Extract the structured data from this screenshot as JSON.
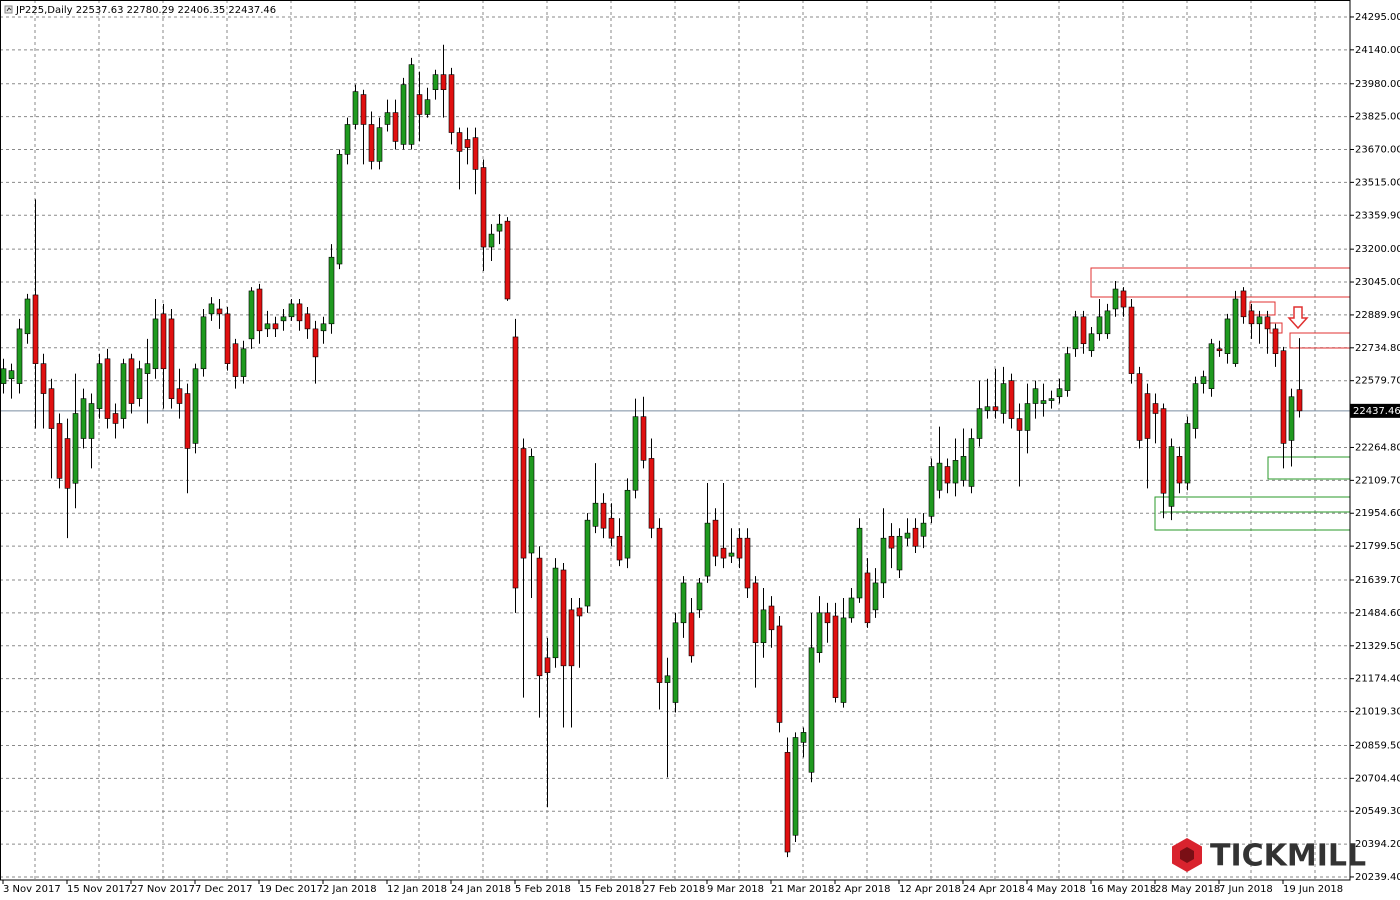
{
  "chart_data": {
    "type": "candlestick",
    "title": "JP225,Daily  22537.63 22780.29 22406.35 22437.46",
    "current_price": 22437.46,
    "up_color": "#1f9a1f",
    "down_color": "#e01010",
    "grid": true,
    "ylim": [
      20225,
      24375
    ],
    "yticks": [
      {
        "value": 24295,
        "label": "24295.00"
      },
      {
        "value": 24140,
        "label": "24140.00"
      },
      {
        "value": 23980,
        "label": "23980.00"
      },
      {
        "value": 23825,
        "label": "23825.00"
      },
      {
        "value": 23670,
        "label": "23670.00"
      },
      {
        "value": 23515,
        "label": "23515.00"
      },
      {
        "value": 23359.9,
        "label": "23359.90"
      },
      {
        "value": 23200,
        "label": "23200.00"
      },
      {
        "value": 23045,
        "label": "23045.00"
      },
      {
        "value": 22889.9,
        "label": "22889.90"
      },
      {
        "value": 22734.8,
        "label": "22734.80"
      },
      {
        "value": 22579.7,
        "label": "22579.70"
      },
      {
        "value": 22264.8,
        "label": "22264.80"
      },
      {
        "value": 22109.7,
        "label": "22109.70"
      },
      {
        "value": 21954.6,
        "label": "21954.60"
      },
      {
        "value": 21799.5,
        "label": "21799.50"
      },
      {
        "value": 21639.7,
        "label": "21639.70"
      },
      {
        "value": 21484.6,
        "label": "21484.60"
      },
      {
        "value": 21329.5,
        "label": "21329.50"
      },
      {
        "value": 21174.4,
        "label": "21174.40"
      },
      {
        "value": 21019.3,
        "label": "21019.30"
      },
      {
        "value": 20859.5,
        "label": "20859.50"
      },
      {
        "value": 20704.4,
        "label": "20704.40"
      },
      {
        "value": 20549.3,
        "label": "20549.30"
      },
      {
        "value": 20394.2,
        "label": "20394.20"
      },
      {
        "value": 20239.4,
        "label": "20239.40"
      }
    ],
    "categories": [
      "3 Nov 2017",
      null,
      null,
      null,
      null,
      null,
      null,
      null,
      "15 Nov 2017",
      null,
      null,
      null,
      null,
      null,
      null,
      null,
      "27 Nov 2017",
      null,
      null,
      null,
      null,
      null,
      null,
      null,
      "7 Dec 2017",
      null,
      null,
      null,
      null,
      null,
      null,
      null,
      "19 Dec 2017",
      null,
      null,
      null,
      null,
      null,
      null,
      null,
      "2 Jan 2018",
      null,
      null,
      null,
      null,
      null,
      null,
      null,
      "12 Jan 2018",
      null,
      null,
      null,
      null,
      null,
      null,
      null,
      "24 Jan 2018",
      null,
      null,
      null,
      null,
      null,
      null,
      null,
      "5 Feb 2018",
      null,
      null,
      null,
      null,
      null,
      null,
      null,
      "15 Feb 2018",
      null,
      null,
      null,
      null,
      null,
      null,
      null,
      "27 Feb 2018",
      null,
      null,
      null,
      null,
      null,
      null,
      null,
      "9 Mar 2018",
      null,
      null,
      null,
      null,
      null,
      null,
      null,
      "21 Mar 2018",
      null,
      null,
      null,
      null,
      null,
      null,
      null,
      "2 Apr 2018",
      null,
      null,
      null,
      null,
      null,
      null,
      null,
      "12 Apr 2018",
      null,
      null,
      null,
      null,
      null,
      null,
      null,
      "24 Apr 2018",
      null,
      null,
      null,
      null,
      null,
      null,
      null,
      "4 May 2018",
      null,
      null,
      null,
      null,
      null,
      null,
      null,
      "16 May 2018",
      null,
      null,
      null,
      null,
      null,
      null,
      null,
      "28 May 2018",
      null,
      null,
      null,
      null,
      null,
      null,
      null,
      "7 Jun 2018",
      null,
      null,
      null,
      null,
      null,
      null,
      null,
      "19 Jun 2018",
      null,
      null
    ],
    "candles": [
      [
        22566,
        22683,
        22519,
        22636
      ],
      [
        22589,
        22660,
        22495,
        22627
      ],
      [
        22566,
        22871,
        22519,
        22824
      ],
      [
        22801,
        22989,
        22754,
        22965
      ],
      [
        22984,
        23435,
        22354,
        22660
      ],
      [
        22660,
        22707,
        22354,
        22519
      ],
      [
        22542,
        22589,
        22119,
        22354
      ],
      [
        22378,
        22425,
        22072,
        22119
      ],
      [
        22307,
        22401,
        21837,
        22072
      ],
      [
        22096,
        22613,
        21978,
        22425
      ],
      [
        22307,
        22542,
        22260,
        22495
      ],
      [
        22307,
        22519,
        22166,
        22472
      ],
      [
        22448,
        22707,
        22401,
        22660
      ],
      [
        22683,
        22730,
        22354,
        22401
      ],
      [
        22425,
        22472,
        22307,
        22378
      ],
      [
        22401,
        22683,
        22354,
        22660
      ],
      [
        22683,
        22707,
        22425,
        22472
      ],
      [
        22495,
        22674,
        22458,
        22636
      ],
      [
        22613,
        22777,
        22378,
        22660
      ],
      [
        22636,
        22965,
        22589,
        22871
      ],
      [
        22895,
        22942,
        22448,
        22636
      ],
      [
        22871,
        22918,
        22448,
        22495
      ],
      [
        22542,
        22636,
        22401,
        22472
      ],
      [
        22519,
        22566,
        22049,
        22260
      ],
      [
        22284,
        22660,
        22237,
        22636
      ],
      [
        22636,
        22918,
        22599,
        22881
      ],
      [
        22895,
        22974,
        22862,
        22942
      ],
      [
        22918,
        22965,
        22824,
        22895
      ],
      [
        22895,
        22927,
        22627,
        22660
      ],
      [
        22754,
        22777,
        22542,
        22599
      ],
      [
        22599,
        22768,
        22566,
        22730
      ],
      [
        22777,
        23021,
        22730,
        23003
      ],
      [
        23012,
        23036,
        22754,
        22815
      ],
      [
        22824,
        22909,
        22786,
        22848
      ],
      [
        22848,
        22881,
        22786,
        22824
      ],
      [
        22862,
        22918,
        22815,
        22881
      ],
      [
        22881,
        22965,
        22862,
        22942
      ],
      [
        22942,
        22965,
        22815,
        22862
      ],
      [
        22895,
        22927,
        22777,
        22824
      ],
      [
        22824,
        22862,
        22566,
        22692
      ],
      [
        22815,
        22881,
        22754,
        22848
      ],
      [
        22848,
        23224,
        22801,
        23162
      ],
      [
        23130,
        23670,
        23106,
        23647
      ],
      [
        23647,
        23820,
        23600,
        23788
      ],
      [
        23788,
        23976,
        23764,
        23943
      ],
      [
        23929,
        23952,
        23600,
        23788
      ],
      [
        23788,
        23849,
        23576,
        23614
      ],
      [
        23614,
        23820,
        23576,
        23773
      ],
      [
        23788,
        23905,
        23755,
        23844
      ],
      [
        23844,
        23905,
        23670,
        23708
      ],
      [
        23694,
        24008,
        23670,
        23976
      ],
      [
        23694,
        24102,
        23670,
        24070
      ],
      [
        23929,
        24037,
        23708,
        23835
      ],
      [
        23835,
        23961,
        23820,
        23905
      ],
      [
        23952,
        24046,
        23905,
        24023
      ],
      [
        24023,
        24164,
        23820,
        23952
      ],
      [
        24023,
        24055,
        23694,
        23750
      ],
      [
        23750,
        23773,
        23482,
        23661
      ],
      [
        23717,
        23773,
        23600,
        23679
      ],
      [
        23726,
        23773,
        23459,
        23576
      ],
      [
        23585,
        23623,
        23097,
        23210
      ],
      [
        23210,
        23318,
        23144,
        23271
      ],
      [
        23285,
        23365,
        23224,
        23318
      ],
      [
        23332,
        23351,
        22956,
        22965
      ],
      [
        22786,
        22871,
        21485,
        21602
      ],
      [
        22260,
        22307,
        21085,
        21743
      ],
      [
        21767,
        22260,
        21555,
        22223
      ],
      [
        21743,
        21799,
        20991,
        21188
      ],
      [
        21273,
        21367,
        20568,
        21203
      ],
      [
        21273,
        21743,
        21226,
        21696
      ],
      [
        21687,
        21720,
        20944,
        21235
      ],
      [
        21499,
        21555,
        20944,
        21235
      ],
      [
        21508,
        21555,
        21226,
        21470
      ],
      [
        21517,
        21955,
        21485,
        21922
      ],
      [
        21893,
        22191,
        21861,
        22002
      ],
      [
        22002,
        22049,
        21837,
        21884
      ],
      [
        21931,
        22002,
        21799,
        21837
      ],
      [
        21846,
        21931,
        21705,
        21734
      ],
      [
        21743,
        22119,
        21696,
        22063
      ],
      [
        22063,
        22495,
        22025,
        22410
      ],
      [
        22410,
        22504,
        22166,
        22204
      ],
      [
        22213,
        22307,
        21837,
        21884
      ],
      [
        21884,
        21931,
        21029,
        21156
      ],
      [
        21156,
        21273,
        20709,
        21188
      ],
      [
        21062,
        21485,
        21015,
        21438
      ],
      [
        21438,
        21658,
        21367,
        21626
      ],
      [
        21485,
        21555,
        21250,
        21282
      ],
      [
        21499,
        21649,
        21461,
        21626
      ],
      [
        21658,
        22097,
        21626,
        21908
      ],
      [
        21922,
        21978,
        21705,
        21752
      ],
      [
        21790,
        22097,
        21696,
        21743
      ],
      [
        21752,
        21884,
        21720,
        21767
      ],
      [
        21837,
        21884,
        21696,
        21743
      ],
      [
        21837,
        21884,
        21555,
        21602
      ],
      [
        21626,
        21658,
        21132,
        21344
      ],
      [
        21344,
        21602,
        21273,
        21499
      ],
      [
        21517,
        21564,
        21320,
        21405
      ],
      [
        21423,
        21470,
        20921,
        20968
      ],
      [
        20827,
        20897,
        20333,
        20357
      ],
      [
        20436,
        20921,
        20404,
        20897
      ],
      [
        20874,
        20944,
        20803,
        20921
      ],
      [
        20733,
        21485,
        20686,
        21320
      ],
      [
        21297,
        21564,
        21250,
        21485
      ],
      [
        21485,
        21532,
        21344,
        21438
      ],
      [
        21470,
        21532,
        21062,
        21085
      ],
      [
        21062,
        21555,
        21038,
        21461
      ],
      [
        21461,
        21602,
        21438,
        21555
      ],
      [
        21555,
        21931,
        21532,
        21884
      ],
      [
        21673,
        21743,
        21414,
        21438
      ],
      [
        21499,
        21696,
        21461,
        21626
      ],
      [
        21626,
        21978,
        21555,
        21837
      ],
      [
        21846,
        21908,
        21696,
        21790
      ],
      [
        21687,
        21884,
        21649,
        21846
      ],
      [
        21837,
        21931,
        21799,
        21861
      ],
      [
        21884,
        21931,
        21767,
        21799
      ],
      [
        21846,
        21955,
        21790,
        21908
      ],
      [
        21940,
        22213,
        21908,
        22175
      ],
      [
        22063,
        22363,
        22025,
        22191
      ],
      [
        22175,
        22213,
        22049,
        22097
      ],
      [
        22097,
        22307,
        22034,
        22204
      ],
      [
        22110,
        22354,
        22081,
        22223
      ],
      [
        22081,
        22354,
        22049,
        22307
      ],
      [
        22307,
        22580,
        22269,
        22448
      ],
      [
        22439,
        22589,
        22401,
        22457
      ],
      [
        22457,
        22636,
        22401,
        22439
      ],
      [
        22425,
        22645,
        22378,
        22566
      ],
      [
        22580,
        22613,
        22354,
        22401
      ],
      [
        22401,
        22472,
        22081,
        22345
      ],
      [
        22345,
        22566,
        22237,
        22472
      ],
      [
        22472,
        22580,
        22401,
        22542
      ],
      [
        22472,
        22566,
        22410,
        22486
      ],
      [
        22486,
        22533,
        22448,
        22495
      ],
      [
        22504,
        22589,
        22472,
        22542
      ],
      [
        22533,
        22739,
        22504,
        22707
      ],
      [
        22730,
        22909,
        22692,
        22881
      ],
      [
        22881,
        22909,
        22707,
        22754
      ],
      [
        22721,
        22833,
        22692,
        22801
      ],
      [
        22801,
        22965,
        22768,
        22881
      ],
      [
        22801,
        22942,
        22777,
        22909
      ],
      [
        22918,
        23050,
        22881,
        23012
      ],
      [
        23003,
        23021,
        22881,
        22927
      ],
      [
        22927,
        22965,
        22566,
        22613
      ],
      [
        22613,
        22645,
        22260,
        22298
      ],
      [
        22519,
        22566,
        22072,
        22307
      ],
      [
        22472,
        22519,
        22284,
        22425
      ],
      [
        22448,
        22472,
        21931,
        22049
      ],
      [
        21987,
        22307,
        21922,
        22269
      ],
      [
        22223,
        22269,
        22049,
        22097
      ],
      [
        22097,
        22410,
        22063,
        22378
      ],
      [
        22354,
        22599,
        22307,
        22566
      ],
      [
        22566,
        22627,
        22519,
        22599
      ],
      [
        22542,
        22777,
        22504,
        22754
      ],
      [
        22730,
        22768,
        22692,
        22721
      ],
      [
        22707,
        22895,
        22660,
        22871
      ],
      [
        22660,
        23003,
        22645,
        22965
      ],
      [
        23003,
        23021,
        22848,
        22881
      ],
      [
        22909,
        22942,
        22777,
        22848
      ],
      [
        22848,
        22909,
        22754,
        22881
      ],
      [
        22881,
        22909,
        22707,
        22824
      ],
      [
        22824,
        22848,
        22645,
        22707
      ],
      [
        22721,
        22739,
        22166,
        22284
      ],
      [
        22298,
        22542,
        22175,
        22504
      ],
      [
        22537.63,
        22780.29,
        22406.35,
        22437.46
      ]
    ]
  },
  "logo": "TICKMILL"
}
